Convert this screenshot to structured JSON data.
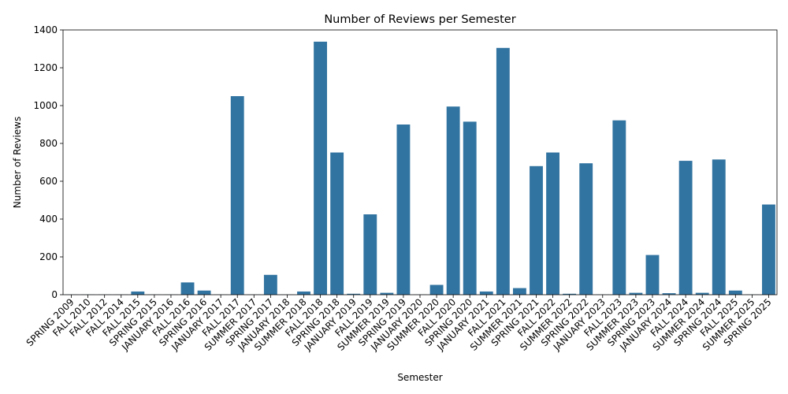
{
  "chart_data": {
    "type": "bar",
    "title": "Number of Reviews per Semester",
    "xlabel": "Semester",
    "ylabel": "Number of Reviews",
    "ylim": [
      0,
      1400
    ],
    "yticks": [
      0,
      200,
      400,
      600,
      800,
      1000,
      1200,
      1400
    ],
    "grid": false,
    "bar_color": "#3274a1",
    "categories": [
      "SPRING 2009",
      "FALL 2010",
      "FALL 2012",
      "FALL 2014",
      "FALL 2015",
      "SPRING 2015",
      "JANUARY 2016",
      "FALL 2016",
      "SPRING 2016",
      "JANUARY 2017",
      "FALL 2017",
      "SUMMER 2017",
      "SPRING 2017",
      "JANUARY 2018",
      "SUMMER 2018",
      "FALL 2018",
      "SPRING 2018",
      "JANUARY 2019",
      "FALL 2019",
      "SUMMER 2019",
      "SPRING 2019",
      "JANUARY 2020",
      "SUMMER 2020",
      "FALL 2020",
      "SPRING 2020",
      "JANUARY 2021",
      "FALL 2021",
      "SUMMER 2021",
      "SPRING 2021",
      "FALL 2022",
      "SUMMER 2022",
      "SPRING 2022",
      "JANUARY 2023",
      "FALL 2023",
      "SUMMER 2023",
      "SPRING 2023",
      "JANUARY 2024",
      "FALL 2024",
      "SUMMER 2024",
      "SPRING 2024",
      "FALL 2025",
      "SUMMER 2025",
      "SPRING 2025"
    ],
    "values": [
      1,
      1,
      1,
      1,
      17,
      1,
      1,
      65,
      22,
      1,
      1050,
      1,
      105,
      1,
      17,
      1338,
      752,
      5,
      425,
      10,
      900,
      1,
      52,
      995,
      915,
      17,
      1305,
      35,
      680,
      752,
      5,
      695,
      1,
      922,
      10,
      210,
      8,
      708,
      10,
      715,
      22,
      1,
      477
    ]
  }
}
